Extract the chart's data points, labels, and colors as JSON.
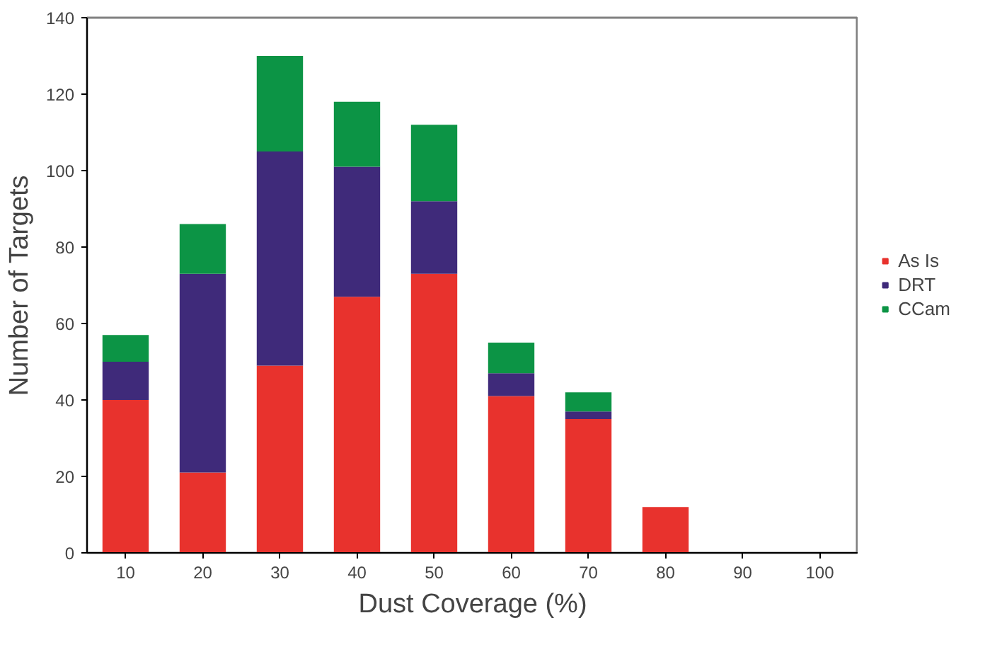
{
  "chart_data": {
    "type": "bar",
    "stacked": true,
    "xlabel": "Dust Coverage (%)",
    "ylabel": "Number of Targets",
    "categories": [
      "10",
      "20",
      "30",
      "40",
      "50",
      "60",
      "70",
      "80",
      "90",
      "100"
    ],
    "series": [
      {
        "name": "As Is",
        "color": "#e8322d",
        "values": [
          40,
          21,
          49,
          67,
          73,
          41,
          35,
          12,
          0,
          0
        ]
      },
      {
        "name": "DRT",
        "color": "#3f2a7a",
        "values": [
          10,
          52,
          56,
          34,
          19,
          6,
          2,
          0,
          0,
          0
        ]
      },
      {
        "name": "CCam",
        "color": "#0c9445",
        "values": [
          7,
          13,
          25,
          17,
          20,
          8,
          5,
          0,
          0,
          0
        ]
      }
    ],
    "ylim": [
      0,
      140
    ],
    "yticks": [
      0,
      20,
      40,
      60,
      80,
      100,
      120,
      140
    ],
    "grid": false,
    "legend": "right"
  }
}
